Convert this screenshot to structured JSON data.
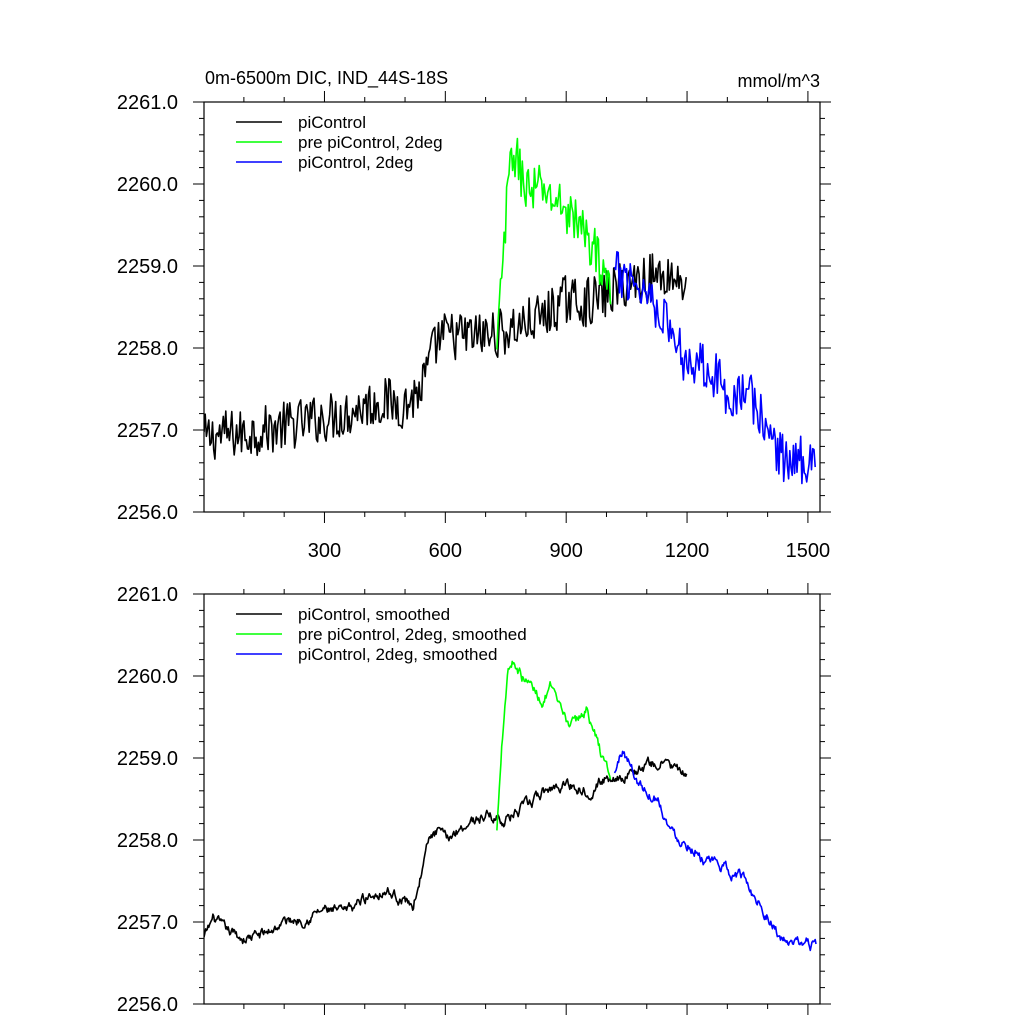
{
  "header": {
    "title": "0m-6500m DIC, IND_44S-18S",
    "units": "mmol/m^3"
  },
  "colors": {
    "piControl": "#000000",
    "pre_piControl_2deg": "#00ff00",
    "piControl_2deg": "#0000ff"
  },
  "chart_data": [
    {
      "type": "line",
      "panel": "top",
      "title": "0m-6500m DIC, IND_44S-18S",
      "units": "mmol/m^3",
      "xlabel": "",
      "ylabel": "",
      "xlim": [
        1,
        1530
      ],
      "ylim": [
        2256.0,
        2261.0
      ],
      "xticks": [
        300,
        600,
        900,
        1200,
        1500
      ],
      "yticks": [
        2256.0,
        2257.0,
        2258.0,
        2259.0,
        2260.0,
        2261.0
      ],
      "ytick_labels": [
        "2256.0",
        "2257.0",
        "2258.0",
        "2259.0",
        "2260.0",
        "2261.0"
      ],
      "show_xtick_labels": true,
      "legend_position": "top-left",
      "series": [
        {
          "name": "piControl",
          "color_key": "piControl",
          "x": [
            1,
            50,
            100,
            150,
            200,
            250,
            300,
            350,
            400,
            450,
            500,
            540,
            560,
            580,
            600,
            650,
            700,
            750,
            800,
            850,
            900,
            950,
            1000,
            1050,
            1100,
            1150,
            1200
          ],
          "y": [
            2256.9,
            2256.95,
            2256.95,
            2257.0,
            2257.05,
            2257.1,
            2257.15,
            2257.2,
            2257.3,
            2257.35,
            2257.3,
            2257.5,
            2257.8,
            2258.1,
            2258.15,
            2258.15,
            2258.15,
            2258.2,
            2258.3,
            2258.4,
            2258.6,
            2258.55,
            2258.65,
            2258.8,
            2258.85,
            2258.9,
            2258.8
          ]
        },
        {
          "name": "pre piControl, 2deg",
          "color_key": "pre_piControl_2deg",
          "x": [
            728,
            735,
            745,
            760,
            770,
            790,
            810,
            840,
            870,
            900,
            930,
            960,
            990,
            1010
          ],
          "y": [
            2257.9,
            2258.5,
            2259.2,
            2260.2,
            2260.4,
            2260.1,
            2259.9,
            2259.95,
            2259.8,
            2259.7,
            2259.5,
            2259.3,
            2259.0,
            2258.7
          ]
        },
        {
          "name": "piControl, 2deg",
          "color_key": "piControl_2deg",
          "x": [
            1020,
            1040,
            1060,
            1080,
            1100,
            1130,
            1160,
            1190,
            1220,
            1250,
            1280,
            1310,
            1340,
            1370,
            1400,
            1430,
            1460,
            1490,
            1520
          ],
          "y": [
            2258.9,
            2258.85,
            2258.9,
            2258.75,
            2258.7,
            2258.5,
            2258.2,
            2257.9,
            2257.85,
            2257.8,
            2257.6,
            2257.4,
            2257.5,
            2257.3,
            2257.0,
            2256.7,
            2256.6,
            2256.65,
            2256.7
          ]
        }
      ]
    },
    {
      "type": "line",
      "panel": "bottom",
      "title": "",
      "xlabel": "",
      "ylabel": "",
      "xlim": [
        1,
        1530
      ],
      "ylim": [
        2256.0,
        2261.0
      ],
      "xticks": [
        300,
        600,
        900,
        1200,
        1500
      ],
      "yticks": [
        2256.0,
        2257.0,
        2258.0,
        2259.0,
        2260.0,
        2261.0
      ],
      "ytick_labels": [
        "2256.0",
        "2257.0",
        "2258.0",
        "2259.0",
        "2260.0",
        "2261.0"
      ],
      "show_xtick_labels": false,
      "legend_position": "top-left",
      "series": [
        {
          "name": "piControl, smoothed",
          "color_key": "piControl",
          "x": [
            1,
            25,
            50,
            100,
            150,
            200,
            250,
            300,
            350,
            400,
            450,
            520,
            540,
            560,
            580,
            600,
            650,
            700,
            750,
            800,
            850,
            900,
            950,
            1000,
            1050,
            1100,
            1150,
            1200
          ],
          "y": [
            2256.8,
            2257.05,
            2256.9,
            2256.8,
            2256.85,
            2257.0,
            2257.05,
            2257.15,
            2257.1,
            2257.3,
            2257.4,
            2257.2,
            2257.6,
            2258.0,
            2258.1,
            2258.0,
            2258.2,
            2258.3,
            2258.25,
            2258.4,
            2258.6,
            2258.7,
            2258.6,
            2258.75,
            2258.8,
            2258.9,
            2258.95,
            2258.75
          ]
        },
        {
          "name": "pre piControl, 2deg, smoothed",
          "color_key": "pre_piControl_2deg",
          "x": [
            728,
            740,
            755,
            770,
            790,
            810,
            840,
            860,
            890,
            920,
            950,
            970,
            990,
            1010
          ],
          "y": [
            2258.1,
            2259.2,
            2260.1,
            2260.2,
            2260.0,
            2259.9,
            2259.7,
            2259.85,
            2259.5,
            2259.4,
            2259.6,
            2259.3,
            2259.0,
            2258.8
          ]
        },
        {
          "name": "piControl, 2deg, smoothed",
          "color_key": "piControl_2deg",
          "x": [
            1020,
            1040,
            1060,
            1080,
            1100,
            1130,
            1160,
            1190,
            1220,
            1250,
            1280,
            1310,
            1340,
            1370,
            1400,
            1430,
            1460,
            1490,
            1520
          ],
          "y": [
            2258.8,
            2259.1,
            2258.9,
            2258.7,
            2258.6,
            2258.5,
            2258.1,
            2258.0,
            2257.9,
            2257.7,
            2257.7,
            2257.6,
            2257.55,
            2257.3,
            2257.1,
            2256.8,
            2256.7,
            2256.75,
            2256.7
          ]
        }
      ]
    }
  ]
}
